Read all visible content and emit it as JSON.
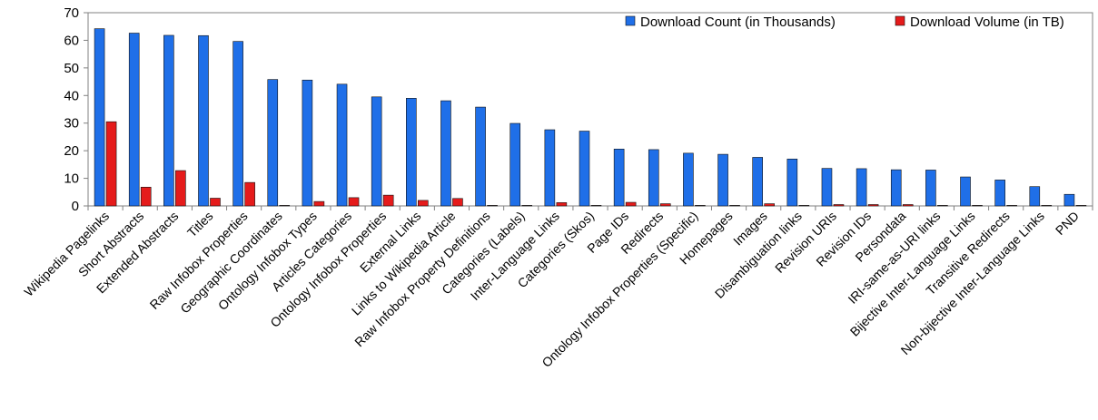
{
  "chart_data": {
    "type": "bar",
    "title": "",
    "xlabel": "",
    "ylabel": "",
    "ylim": [
      0,
      70
    ],
    "yticks": [
      "0",
      "10",
      "20",
      "30",
      "40",
      "50",
      "60",
      "70"
    ],
    "grid": false,
    "legend_position": "top-right",
    "categories": [
      "Wikipedia Pagelinks",
      "Short Abstracts",
      "Extended Abstracts",
      "Titles",
      "Raw Infobox Properties",
      "Geographic Coordinates",
      "Ontology Infobox Types",
      "Articles Categories",
      "Ontology Infobox Properties",
      "External Links",
      "Links to Wikipedia Article",
      "Raw Infobox Property Definitions",
      "Categories (Labels)",
      "Inter-Language Links",
      "Categories (Skos)",
      "Page IDs",
      "Redirects",
      "Ontology Infobox Properties (Specific)",
      "Homepages",
      "Images",
      "Disambiguation links",
      "Revision URIs",
      "Revision IDs",
      "Persondata",
      "IRI-same-as-URI links",
      "Bijective Inter-Language Links",
      "Transitive Redirects",
      "Non-bijective Inter-Language Links",
      "PND"
    ],
    "series": [
      {
        "name": "Download Count (in Thousands)",
        "color": "#1f6fe8",
        "values": [
          64.2,
          62.6,
          61.8,
          61.7,
          59.6,
          45.8,
          45.6,
          44.1,
          39.5,
          39.0,
          38.1,
          35.8,
          29.9,
          27.6,
          27.1,
          20.6,
          20.4,
          19.1,
          18.7,
          17.6,
          17.0,
          13.6,
          13.5,
          13.1,
          13.0,
          10.5,
          9.4,
          7.0,
          4.2
        ]
      },
      {
        "name": "Download Volume (in TB)",
        "color": "#e51b1b",
        "values": [
          30.5,
          6.8,
          12.8,
          2.8,
          8.5,
          0.1,
          1.6,
          3.0,
          3.9,
          2.0,
          2.7,
          0.1,
          0.1,
          1.2,
          0.1,
          1.3,
          0.8,
          0.1,
          0.1,
          0.8,
          0.1,
          0.5,
          0.5,
          0.5,
          0.1,
          0.2,
          0.1,
          0.1,
          0.1
        ]
      }
    ]
  }
}
